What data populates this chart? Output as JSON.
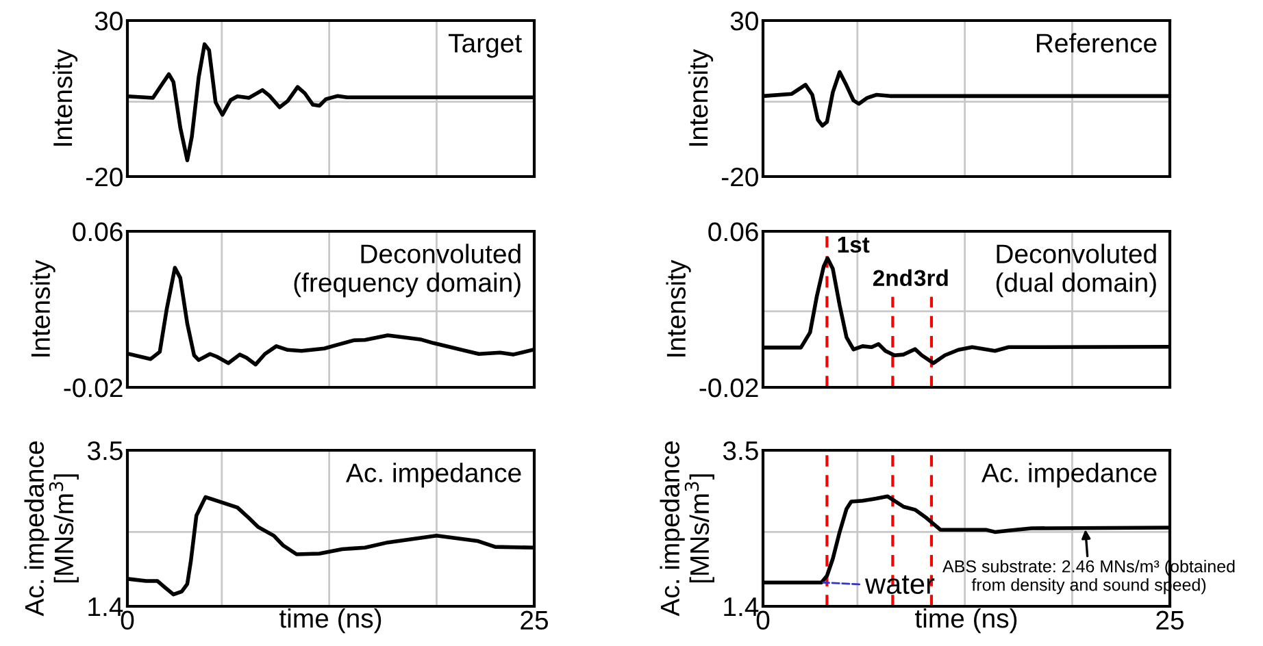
{
  "chart_data": [
    {
      "type": "line",
      "title": "Target",
      "ylabel": "Intensity",
      "color": "#000000",
      "grid": true,
      "tick_labels": "y",
      "xlim": [
        0,
        25
      ],
      "xticks": [
        {
          "value": 0,
          "label": null
        },
        {
          "value": 5.8,
          "label": null
        },
        {
          "value": 12.4,
          "label": null
        },
        {
          "value": 19.0,
          "label": null
        },
        {
          "value": 25,
          "label": null
        }
      ],
      "ylim": [
        -20,
        30
      ],
      "yticks": [
        -20,
        {
          "value": 4,
          "label": null
        },
        30
      ],
      "x": [
        0,
        1.57,
        2.13,
        2.55,
        2.83,
        3.25,
        3.68,
        3.96,
        4.38,
        4.74,
        5.02,
        5.42,
        5.84,
        6.34,
        6.76,
        7.46,
        8.3,
        8.73,
        9.35,
        9.85,
        10.46,
        10.9,
        11.4,
        11.8,
        12.2,
        12.9,
        13.5,
        25
      ],
      "values": [
        5.7,
        5.2,
        9.6,
        12.8,
        10.3,
        -4.3,
        -14.8,
        -7.2,
        11.8,
        22.4,
        20.5,
        3.8,
        -0.2,
        4.5,
        5.7,
        5.2,
        7.7,
        5.9,
        2.2,
        4.2,
        8.7,
        6.7,
        3.0,
        2.7,
        4.8,
        5.8,
        5.4,
        5.4
      ]
    },
    {
      "type": "line",
      "title": "Reference",
      "ylabel": "Intensity",
      "color": "#000000",
      "grid": true,
      "tick_labels": "y",
      "xlim": [
        0,
        25
      ],
      "xticks": [
        {
          "value": 0,
          "label": null
        },
        {
          "value": 5.8,
          "label": null
        },
        {
          "value": 12.4,
          "label": null
        },
        {
          "value": 19.0,
          "label": null
        },
        {
          "value": 25,
          "label": null
        }
      ],
      "ylim": [
        -20,
        30
      ],
      "yticks": [
        -20,
        {
          "value": 4,
          "label": null
        },
        30
      ],
      "x": [
        0,
        1.77,
        2.61,
        3.03,
        3.37,
        3.65,
        3.93,
        4.29,
        4.71,
        5.13,
        5.56,
        5.89,
        6.4,
        6.96,
        7.8,
        25
      ],
      "values": [
        5.8,
        6.5,
        9.4,
        6.2,
        -1.8,
        -3.7,
        -2.5,
        7.0,
        13.5,
        9.2,
        4.4,
        3.3,
        5.2,
        6.2,
        5.8,
        5.8
      ]
    },
    {
      "type": "line",
      "title": "Deconvoluted\n(frequency domain)",
      "ylabel": "Intensity",
      "color": "#000000",
      "grid": true,
      "tick_labels": "y",
      "xlim": [
        0,
        25
      ],
      "xticks": [
        {
          "value": 0,
          "label": null
        },
        {
          "value": 5.8,
          "label": null
        },
        {
          "value": 12.4,
          "label": null
        },
        {
          "value": 19.0,
          "label": null
        },
        {
          "value": 25,
          "label": null
        }
      ],
      "ylim": [
        -0.02,
        0.06
      ],
      "yticks": [
        -0.02,
        {
          "value": 0.019,
          "label": null
        },
        0.06
      ],
      "x": [
        0,
        1.43,
        1.99,
        2.41,
        2.92,
        3.25,
        3.68,
        4.1,
        4.38,
        5.08,
        5.5,
        6.2,
        6.9,
        7.32,
        7.88,
        8.45,
        9.15,
        9.85,
        10.7,
        12.1,
        12.9,
        13.9,
        14.6,
        16.0,
        18.0,
        18.8,
        21.6,
        22.9,
        23.7,
        24.9
      ],
      "values": [
        -0.0027,
        -0.0055,
        -0.0018,
        0.0198,
        0.0413,
        0.0361,
        0.0127,
        -0.0036,
        -0.006,
        -0.0029,
        -0.0043,
        -0.0076,
        -0.0032,
        -0.0048,
        -0.0083,
        -0.0029,
        0.0011,
        -0.0008,
        -0.0013,
        -0.0001,
        0.0018,
        0.0041,
        0.0043,
        0.0067,
        0.0046,
        0.0027,
        -0.0029,
        -0.0022,
        -0.0032,
        -0.0008
      ]
    },
    {
      "type": "line",
      "title": "Deconvoluted\n(dual domain)",
      "ylabel": "Intensity",
      "color": "#000000",
      "grid": true,
      "tick_labels": "y",
      "xlim": [
        0,
        25
      ],
      "xticks": [
        {
          "value": 0,
          "label": null
        },
        {
          "value": 5.8,
          "label": null
        },
        {
          "value": 12.4,
          "label": null
        },
        {
          "value": 19.0,
          "label": null
        },
        {
          "value": 25,
          "label": null
        }
      ],
      "ylim": [
        -0.02,
        0.06
      ],
      "yticks": [
        -0.02,
        {
          "value": 0.019,
          "label": null
        },
        0.06
      ],
      "x": [
        0,
        2.33,
        2.89,
        3.31,
        3.73,
        3.96,
        4.29,
        4.71,
        5.13,
        5.56,
        6.12,
        6.68,
        7.1,
        7.52,
        8.08,
        8.64,
        9.34,
        9.76,
        10.47,
        11.17,
        12.0,
        12.85,
        14.25,
        15.1,
        25
      ],
      "values": [
        0.0004,
        0.0004,
        0.0081,
        0.0268,
        0.042,
        0.0462,
        0.0408,
        0.0221,
        0.0057,
        -0.0006,
        0.0011,
        0.0006,
        0.0022,
        -0.0013,
        -0.0036,
        -0.0032,
        -0.0004,
        -0.0036,
        -0.0076,
        -0.0036,
        -0.0008,
        0.0006,
        -0.0013,
        0.0006,
        0.0008
      ],
      "ref_lines": [
        {
          "axis": "x",
          "value": 3.93,
          "label": "1st",
          "color": "#ff0000",
          "line_style": "dashed"
        },
        {
          "axis": "x",
          "value": 7.97,
          "label": "2nd",
          "color": "#ff0000",
          "line_style": "dashed"
        },
        {
          "axis": "x",
          "value": 10.35,
          "label": "3rd",
          "color": "#ff0000",
          "line_style": "dashed"
        }
      ]
    },
    {
      "type": "line",
      "title": "Ac. impedance",
      "ylabel": "Ac. impedance\n[MNs/m$^{3}$]",
      "xlabel": "time (ns)",
      "color": "#000000",
      "grid": true,
      "xlim": [
        0,
        25
      ],
      "xticks": [
        0,
        {
          "value": 5.8,
          "label": null
        },
        {
          "value": 12.4,
          "label": null
        },
        {
          "value": 19.0,
          "label": null
        },
        25
      ],
      "ylim": [
        1.4,
        3.5
      ],
      "yticks": [
        1.4,
        {
          "value": 2.4,
          "label": null
        },
        3.5
      ],
      "x": [
        0,
        1.15,
        1.85,
        2.33,
        2.83,
        3.34,
        3.68,
        3.9,
        4.24,
        4.8,
        5.64,
        6.76,
        7.46,
        8.02,
        9.0,
        9.57,
        10.4,
        11.8,
        13.2,
        14.6,
        16.0,
        19.0,
        21.5,
        22.6,
        25
      ],
      "values": [
        1.77,
        1.74,
        1.74,
        1.65,
        1.56,
        1.6,
        1.7,
        2.01,
        2.62,
        2.87,
        2.81,
        2.73,
        2.59,
        2.47,
        2.35,
        2.22,
        2.1,
        2.11,
        2.17,
        2.19,
        2.26,
        2.35,
        2.28,
        2.2,
        2.19
      ]
    },
    {
      "type": "line",
      "title": "Ac. impedance",
      "ylabel": "Ac. impedance\n[MNs/m$^{3}$]",
      "xlabel": "time (ns)",
      "color": "#000000",
      "grid": true,
      "xlim": [
        0,
        25
      ],
      "xticks": [
        0,
        {
          "value": 5.8,
          "label": null
        },
        {
          "value": 12.4,
          "label": null
        },
        {
          "value": 19.0,
          "label": null
        },
        25
      ],
      "ylim": [
        1.4,
        3.5
      ],
      "yticks": [
        1.4,
        {
          "value": 2.4,
          "label": null
        },
        3.5
      ],
      "x": [
        0,
        3.59,
        3.93,
        4.29,
        4.71,
        5.13,
        5.42,
        6.12,
        6.96,
        7.66,
        8.08,
        8.64,
        9.34,
        10.04,
        10.9,
        11.45,
        13.7,
        14.25,
        15.1,
        16.5,
        25
      ],
      "values": [
        1.72,
        1.72,
        1.81,
        2.04,
        2.4,
        2.71,
        2.81,
        2.82,
        2.85,
        2.88,
        2.82,
        2.74,
        2.7,
        2.59,
        2.43,
        2.43,
        2.43,
        2.4,
        2.42,
        2.45,
        2.46
      ],
      "ref_lines": [
        {
          "axis": "x",
          "value": 3.93,
          "color": "#ff0000",
          "line_style": "dashed"
        },
        {
          "axis": "x",
          "value": 7.97,
          "color": "#ff0000",
          "line_style": "dashed"
        },
        {
          "axis": "x",
          "value": 10.35,
          "color": "#ff0000",
          "line_style": "dashed"
        }
      ],
      "annotations": [
        {
          "text": "water",
          "x": 3.7,
          "y": 1.72
        },
        {
          "text": "ABS substrate: 2.46 MNs/m³ (obtained\nfrom density and sound speed)",
          "x": 19.8,
          "y": 2.46
        }
      ]
    }
  ]
}
